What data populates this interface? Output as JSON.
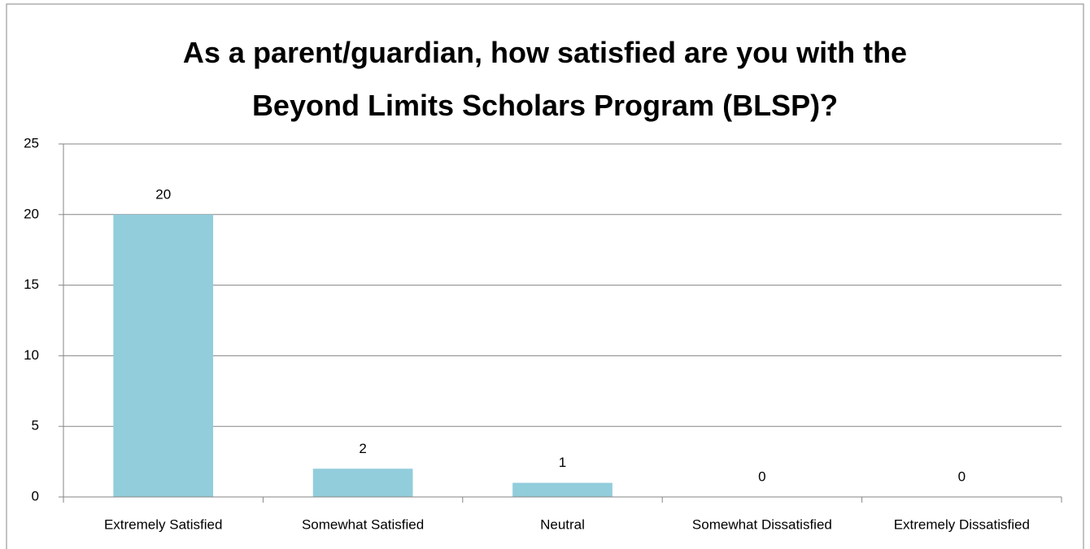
{
  "chart_data": {
    "type": "bar",
    "title": "As a parent/guardian, how satisfied are you with the Beyond Limits Scholars Program (BLSP)?",
    "categories": [
      "Extremely Satisfied",
      "Somewhat Satisfied",
      "Neutral",
      "Somewhat Dissatisfied",
      "Extremely Dissatisfied"
    ],
    "values": [
      20,
      2,
      1,
      0,
      0
    ],
    "color": "#92cddc",
    "ylim": [
      0,
      25
    ],
    "yticks": [
      0,
      5,
      10,
      15,
      20,
      25
    ],
    "grid": true,
    "data_labels": true
  }
}
